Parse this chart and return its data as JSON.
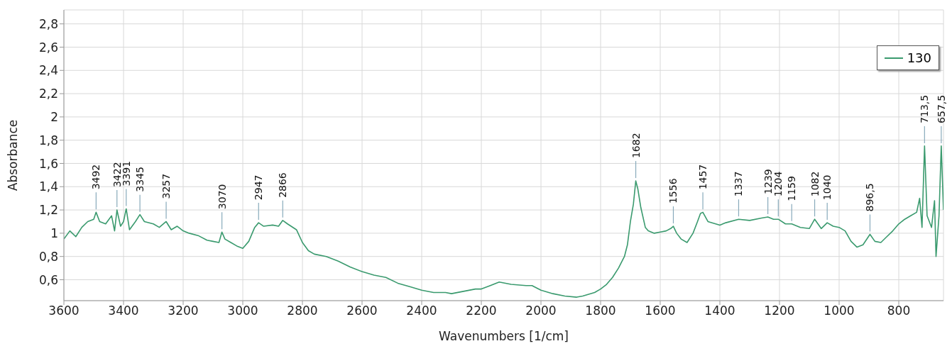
{
  "chart_data": {
    "type": "line",
    "xlabel": "Wavenumbers [1/cm]",
    "ylabel": "Absorbance",
    "xlim": [
      3600,
      650
    ],
    "ylim": [
      0.42,
      2.92
    ],
    "xticks": [
      3600,
      3400,
      3200,
      3000,
      2800,
      2600,
      2400,
      2200,
      2000,
      1800,
      1600,
      1400,
      1200,
      1000,
      800
    ],
    "yticks": [
      {
        "value": 0.6,
        "label": "0,6"
      },
      {
        "value": 0.8,
        "label": "0,8"
      },
      1,
      {
        "value": 1.2,
        "label": "1,2"
      },
      {
        "value": 1.4,
        "label": "1,4"
      },
      {
        "value": 1.6,
        "label": "1,6"
      },
      {
        "value": 1.8,
        "label": "1,8"
      },
      2,
      {
        "value": 2.2,
        "label": "2,2"
      },
      {
        "value": 2.4,
        "label": "2,4"
      },
      {
        "value": 2.6,
        "label": "2,6"
      },
      {
        "value": 2.8,
        "label": "2,8"
      }
    ],
    "grid": true,
    "legend": "top right",
    "marker": "none",
    "line_style": "solid",
    "series": [
      {
        "name": "130",
        "color": "#3a9a6e",
        "x": [
          3600,
          3580,
          3560,
          3540,
          3520,
          3500,
          3492,
          3480,
          3460,
          3440,
          3430,
          3422,
          3410,
          3400,
          3391,
          3380,
          3360,
          3345,
          3330,
          3300,
          3280,
          3257,
          3240,
          3220,
          3200,
          3180,
          3150,
          3120,
          3100,
          3080,
          3070,
          3060,
          3040,
          3020,
          3000,
          2980,
          2960,
          2947,
          2930,
          2900,
          2880,
          2866,
          2850,
          2820,
          2800,
          2780,
          2760,
          2720,
          2680,
          2640,
          2600,
          2560,
          2520,
          2480,
          2440,
          2400,
          2360,
          2320,
          2300,
          2260,
          2220,
          2200,
          2170,
          2140,
          2100,
          2050,
          2030,
          2000,
          1960,
          1920,
          1880,
          1860,
          1820,
          1800,
          1780,
          1760,
          1740,
          1720,
          1710,
          1700,
          1690,
          1682,
          1675,
          1665,
          1650,
          1640,
          1620,
          1600,
          1580,
          1565,
          1556,
          1545,
          1530,
          1510,
          1490,
          1475,
          1465,
          1457,
          1440,
          1400,
          1380,
          1337,
          1300,
          1260,
          1239,
          1220,
          1204,
          1180,
          1159,
          1130,
          1100,
          1082,
          1060,
          1040,
          1020,
          1000,
          980,
          960,
          940,
          920,
          896.5,
          880,
          860,
          840,
          820,
          800,
          780,
          760,
          740,
          730,
          722,
          713.5,
          705,
          690,
          680,
          675,
          665,
          657.5,
          650
        ],
        "values": [
          0.95,
          1.02,
          0.97,
          1.05,
          1.1,
          1.12,
          1.18,
          1.1,
          1.08,
          1.15,
          1.02,
          1.2,
          1.06,
          1.1,
          1.21,
          1.03,
          1.1,
          1.16,
          1.1,
          1.08,
          1.05,
          1.1,
          1.03,
          1.06,
          1.02,
          1.0,
          0.98,
          0.94,
          0.93,
          0.92,
          1.01,
          0.95,
          0.92,
          0.89,
          0.87,
          0.93,
          1.05,
          1.09,
          1.06,
          1.07,
          1.06,
          1.11,
          1.08,
          1.03,
          0.92,
          0.85,
          0.82,
          0.8,
          0.76,
          0.71,
          0.67,
          0.64,
          0.62,
          0.57,
          0.54,
          0.51,
          0.49,
          0.49,
          0.48,
          0.5,
          0.52,
          0.52,
          0.55,
          0.58,
          0.56,
          0.55,
          0.55,
          0.51,
          0.48,
          0.46,
          0.45,
          0.46,
          0.49,
          0.52,
          0.56,
          0.62,
          0.7,
          0.8,
          0.9,
          1.1,
          1.25,
          1.45,
          1.38,
          1.22,
          1.05,
          1.02,
          1.0,
          1.01,
          1.02,
          1.04,
          1.06,
          1.0,
          0.95,
          0.92,
          1.0,
          1.1,
          1.17,
          1.18,
          1.1,
          1.07,
          1.09,
          1.12,
          1.11,
          1.13,
          1.14,
          1.12,
          1.12,
          1.08,
          1.08,
          1.05,
          1.04,
          1.12,
          1.04,
          1.09,
          1.06,
          1.05,
          1.02,
          0.93,
          0.88,
          0.9,
          0.99,
          0.93,
          0.92,
          0.97,
          1.02,
          1.08,
          1.12,
          1.15,
          1.18,
          1.3,
          1.05,
          1.75,
          1.15,
          1.05,
          1.28,
          0.8,
          1.15,
          1.75,
          1.2
        ]
      }
    ],
    "annotations": [
      {
        "text": "3492",
        "x": 3492,
        "y": 1.18
      },
      {
        "text": "3422",
        "x": 3422,
        "y": 1.2
      },
      {
        "text": "3391",
        "x": 3391,
        "y": 1.21
      },
      {
        "text": "3345",
        "x": 3345,
        "y": 1.16
      },
      {
        "text": "3257",
        "x": 3257,
        "y": 1.1
      },
      {
        "text": "3070",
        "x": 3070,
        "y": 1.01
      },
      {
        "text": "2947",
        "x": 2947,
        "y": 1.09
      },
      {
        "text": "2866",
        "x": 2866,
        "y": 1.11
      },
      {
        "text": "1682",
        "x": 1682,
        "y": 1.45
      },
      {
        "text": "1556",
        "x": 1556,
        "y": 1.06
      },
      {
        "text": "1457",
        "x": 1457,
        "y": 1.18
      },
      {
        "text": "1337",
        "x": 1337,
        "y": 1.12
      },
      {
        "text": "1239",
        "x": 1239,
        "y": 1.14
      },
      {
        "text": "1204",
        "x": 1204,
        "y": 1.12
      },
      {
        "text": "1159",
        "x": 1159,
        "y": 1.08
      },
      {
        "text": "1082",
        "x": 1082,
        "y": 1.12
      },
      {
        "text": "1040",
        "x": 1040,
        "y": 1.09
      },
      {
        "text": "896,5",
        "x": 896.5,
        "y": 0.99
      },
      {
        "text": "713,5",
        "x": 713.5,
        "y": 1.75
      },
      {
        "text": "657,5",
        "x": 657.5,
        "y": 1.75
      }
    ]
  }
}
